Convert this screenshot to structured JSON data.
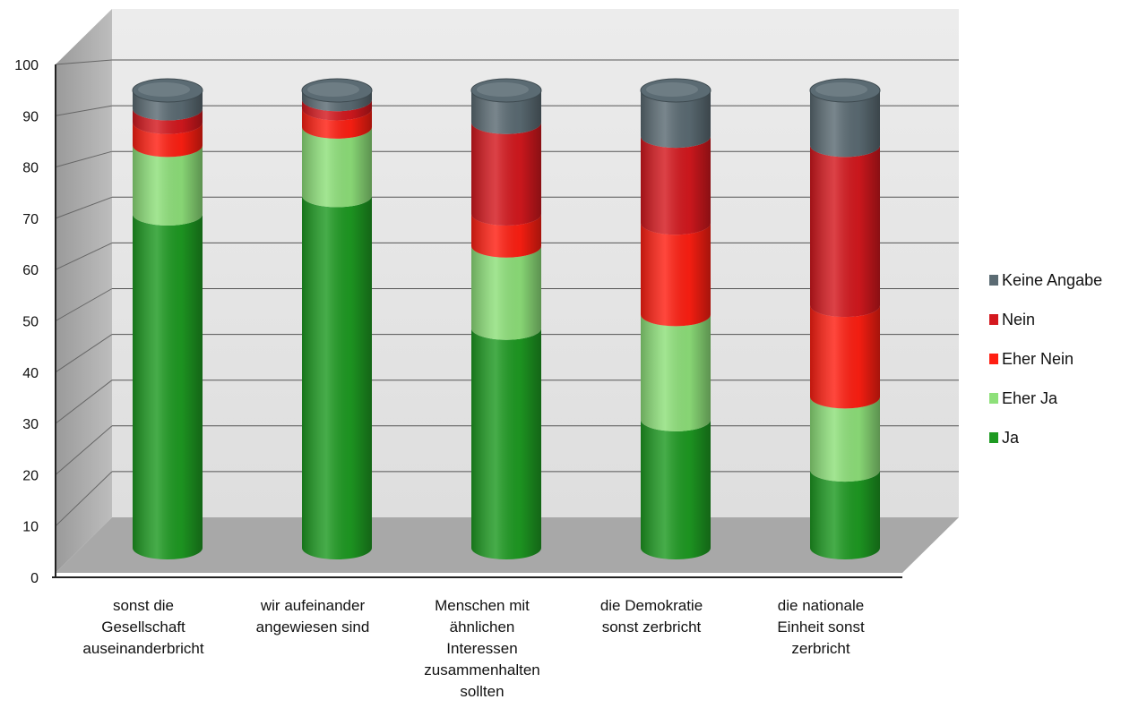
{
  "chart_data": {
    "type": "bar",
    "stacked": true,
    "style": "3d-cylinder",
    "title": "",
    "xlabel": "",
    "ylabel": "",
    "ylim": [
      0,
      100
    ],
    "yticks": [
      "0",
      "10",
      "20",
      "30",
      "40",
      "50",
      "60",
      "70",
      "80",
      "90",
      "100"
    ],
    "grid": true,
    "legend_position": "right",
    "categories": [
      [
        "sonst die",
        "Gesellschaft",
        "auseinanderbricht"
      ],
      [
        "wir aufeinander",
        "angewiesen sind"
      ],
      [
        "Menschen mit",
        "ähnlichen",
        "Interessen",
        "zusammenhalten",
        "sollten"
      ],
      [
        "die Demokratie",
        "sonst zerbricht"
      ],
      [
        "die nationale",
        "Einheit sonst",
        "zerbricht"
      ]
    ],
    "series": [
      {
        "name": "Ja",
        "color": "#1e9a22",
        "values": [
          73,
          77,
          48,
          28,
          17
        ]
      },
      {
        "name": "Eher Ja",
        "color": "#8ee07a",
        "values": [
          15,
          15,
          18,
          23,
          16
        ]
      },
      {
        "name": "Eher Nein",
        "color": "#ff1f12",
        "values": [
          5,
          4,
          7,
          20,
          20
        ]
      },
      {
        "name": "Nein",
        "color": "#d4181e",
        "values": [
          3,
          2,
          20,
          19,
          35
        ]
      },
      {
        "name": "Keine Angabe",
        "color": "#5b6b73",
        "values": [
          4,
          2,
          7,
          10,
          12
        ]
      }
    ],
    "legend_order": [
      "Keine Angabe",
      "Nein",
      "Eher Nein",
      "Eher Ja",
      "Ja"
    ]
  }
}
